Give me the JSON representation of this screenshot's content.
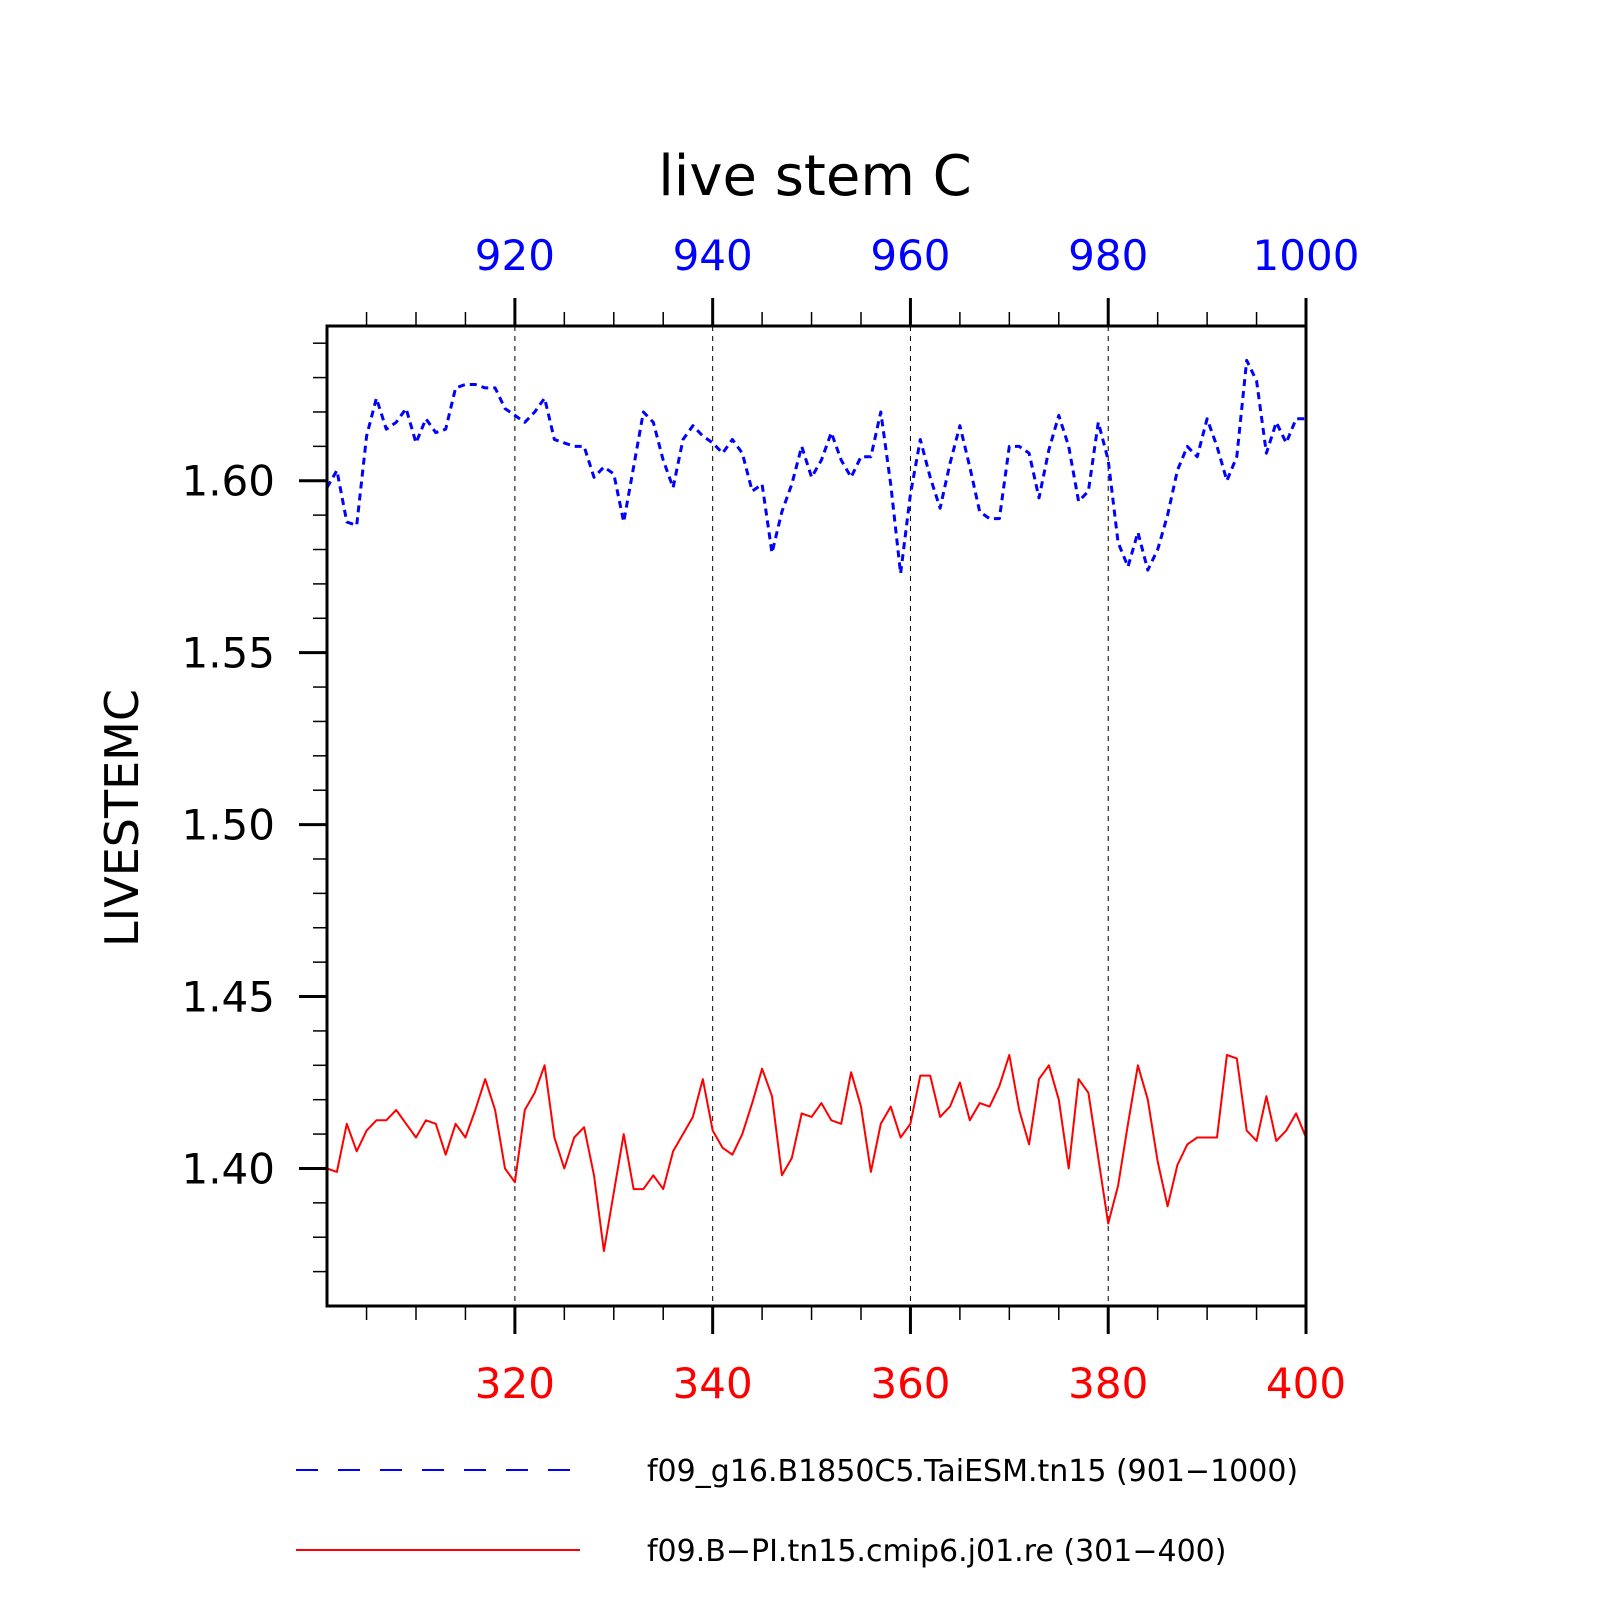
{
  "chart_data": {
    "type": "line",
    "title": "live stem C",
    "ylabel": "LIVESTEMC",
    "ylim": [
      1.36,
      1.645
    ],
    "y_ticks": [
      1.4,
      1.45,
      1.5,
      1.55,
      1.6
    ],
    "y_tick_labels": [
      "1.40",
      "1.45",
      "1.50",
      "1.55",
      "1.60"
    ],
    "grid": "vertical dashed at major x ticks",
    "legend_position": "bottom",
    "x_top": {
      "range": [
        901,
        1000
      ],
      "ticks": [
        920,
        940,
        960,
        980,
        1000
      ],
      "tick_labels": [
        "920",
        "940",
        "960",
        "980",
        "1000"
      ],
      "color": "#0000ff"
    },
    "x_bottom": {
      "range": [
        301,
        400
      ],
      "ticks": [
        320,
        340,
        360,
        380,
        400
      ],
      "tick_labels": [
        "320",
        "340",
        "360",
        "380",
        "400"
      ],
      "color": "#ff0000"
    },
    "series": [
      {
        "name": "f09_g16.B1850C5.TaiESM.tn15 (901−1000)",
        "axis": "top",
        "color": "#0000ff",
        "style": "dashed",
        "x_start": 901,
        "values": [
          1.598,
          1.603,
          1.588,
          1.587,
          1.613,
          1.624,
          1.615,
          1.617,
          1.621,
          1.611,
          1.618,
          1.614,
          1.615,
          1.627,
          1.628,
          1.628,
          1.627,
          1.627,
          1.621,
          1.619,
          1.617,
          1.62,
          1.624,
          1.612,
          1.611,
          1.61,
          1.61,
          1.601,
          1.604,
          1.602,
          1.588,
          1.604,
          1.62,
          1.617,
          1.606,
          1.598,
          1.612,
          1.616,
          1.613,
          1.611,
          1.608,
          1.612,
          1.608,
          1.597,
          1.599,
          1.579,
          1.591,
          1.599,
          1.61,
          1.601,
          1.606,
          1.614,
          1.606,
          1.601,
          1.607,
          1.607,
          1.62,
          1.599,
          1.573,
          1.596,
          1.612,
          1.601,
          1.592,
          1.605,
          1.616,
          1.604,
          1.591,
          1.589,
          1.589,
          1.61,
          1.61,
          1.608,
          1.595,
          1.609,
          1.619,
          1.61,
          1.594,
          1.597,
          1.617,
          1.606,
          1.582,
          1.575,
          1.585,
          1.574,
          1.58,
          1.59,
          1.603,
          1.61,
          1.607,
          1.618,
          1.61,
          1.6,
          1.607,
          1.635,
          1.629,
          1.608,
          1.617,
          1.611,
          1.618,
          1.618
        ]
      },
      {
        "name": "f09.B−PI.tn15.cmip6.j01.re (301−400)",
        "axis": "bottom",
        "color": "#ff0000",
        "style": "solid",
        "x_start": 301,
        "values": [
          1.4,
          1.399,
          1.413,
          1.405,
          1.411,
          1.414,
          1.414,
          1.417,
          1.413,
          1.409,
          1.414,
          1.413,
          1.404,
          1.413,
          1.409,
          1.417,
          1.426,
          1.417,
          1.4,
          1.396,
          1.417,
          1.422,
          1.43,
          1.409,
          1.4,
          1.409,
          1.412,
          1.398,
          1.376,
          1.393,
          1.41,
          1.394,
          1.394,
          1.398,
          1.394,
          1.405,
          1.41,
          1.415,
          1.426,
          1.411,
          1.406,
          1.404,
          1.41,
          1.419,
          1.429,
          1.421,
          1.398,
          1.403,
          1.416,
          1.415,
          1.419,
          1.414,
          1.413,
          1.428,
          1.418,
          1.399,
          1.413,
          1.418,
          1.409,
          1.413,
          1.427,
          1.427,
          1.415,
          1.418,
          1.425,
          1.414,
          1.419,
          1.418,
          1.424,
          1.433,
          1.417,
          1.407,
          1.426,
          1.43,
          1.42,
          1.4,
          1.426,
          1.422,
          1.403,
          1.384,
          1.395,
          1.413,
          1.43,
          1.42,
          1.402,
          1.389,
          1.401,
          1.407,
          1.409,
          1.409,
          1.409,
          1.433,
          1.432,
          1.411,
          1.408,
          1.421,
          1.408,
          1.411,
          1.416,
          1.409
        ]
      }
    ],
    "legend": [
      {
        "label": "f09_g16.B1850C5.TaiESM.tn15 (901−1000)",
        "color": "#0000ff",
        "style": "dashed"
      },
      {
        "label": "f09.B−PI.tn15.cmip6.j01.re (301−400)",
        "color": "#ff0000",
        "style": "solid"
      }
    ]
  }
}
